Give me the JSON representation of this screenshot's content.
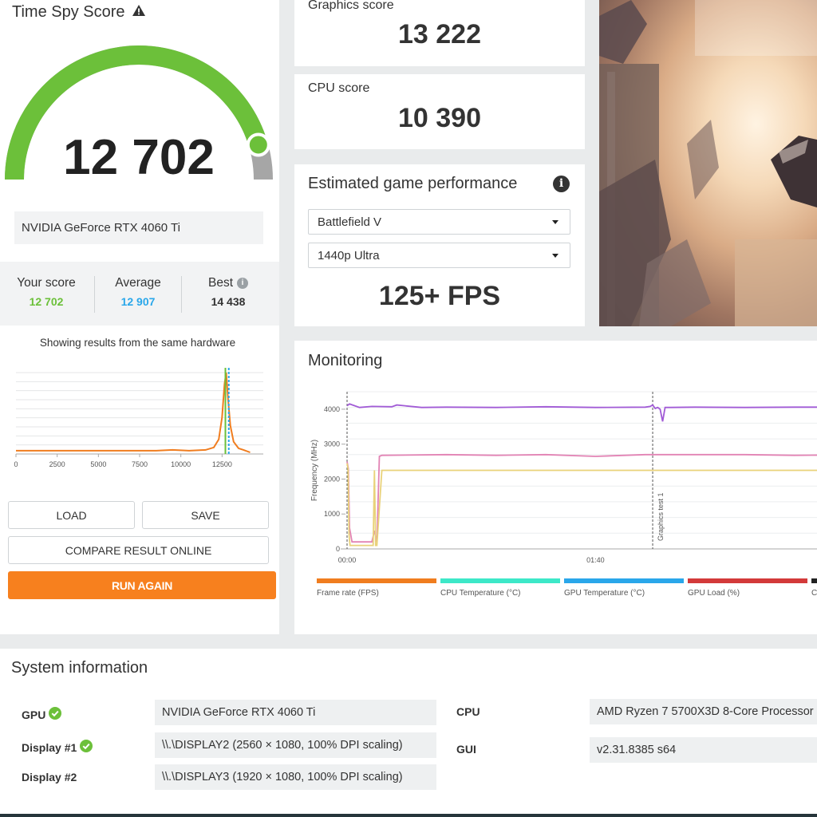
{
  "score_panel": {
    "title": "Time Spy Score",
    "score": "12 702",
    "gauge_fraction": 0.91,
    "hardware": "NVIDIA GeForce RTX 4060 Ti",
    "stats": {
      "your_label": "Your score",
      "your_value": "12 702",
      "avg_label": "Average",
      "avg_value": "12 907",
      "best_label": "Best",
      "best_value": "14 438"
    },
    "distribution_caption": "Showing results from the same hardware",
    "buttons": {
      "load": "LOAD",
      "save": "SAVE",
      "compare": "COMPARE RESULT ONLINE",
      "run": "RUN AGAIN"
    }
  },
  "graphics_card": {
    "label": "Graphics score",
    "value": "13 222"
  },
  "cpu_card": {
    "label": "CPU score",
    "value": "10 390"
  },
  "game_perf": {
    "title": "Estimated game performance",
    "game": "Battlefield V",
    "preset": "1440p Ultra",
    "fps": "125+ FPS"
  },
  "monitoring": {
    "title": "Monitoring",
    "legend": [
      {
        "label": "Frame rate (FPS)",
        "color": "#f07d1f"
      },
      {
        "label": "CPU Temperature (°C)",
        "color": "#3de8c8"
      },
      {
        "label": "GPU Temperature (°C)",
        "color": "#2aa7ea"
      },
      {
        "label": "GPU Load (%)",
        "color": "#d33a3a"
      },
      {
        "label": "C",
        "color": "#222222"
      }
    ]
  },
  "system_info": {
    "title": "System information",
    "gpu_label": "GPU",
    "gpu_value": "NVIDIA GeForce RTX 4060 Ti",
    "display1_label": "Display #1",
    "display1_value": "\\\\.\\DISPLAY2 (2560 × 1080, 100% DPI scaling)",
    "display2_label": "Display #2",
    "display2_value": "\\\\.\\DISPLAY3 (1920 × 1080, 100% DPI scaling)",
    "cpu_label": "CPU",
    "cpu_value": "AMD Ryzen 7 5700X3D 8-Core Processor",
    "gui_label": "GUI",
    "gui_value": "v2.31.8385 s64"
  },
  "colors": {
    "accent_green": "#6cc03a",
    "accent_blue": "#2aa7ea",
    "run_orange": "#f7801e"
  },
  "chart_data": [
    {
      "type": "line",
      "name": "score-distribution",
      "x_ticks": [
        "0",
        "2500",
        "5000",
        "7500",
        "10000",
        "12500"
      ],
      "xlim": [
        0,
        15000
      ],
      "series": [
        {
          "values_x": [
            0,
            2000,
            5000,
            8500,
            9500,
            10500,
            11500,
            12000,
            12300,
            12500,
            12650,
            12750,
            12850,
            13000,
            13200,
            13500,
            13800,
            14200
          ],
          "values_y": [
            0.04,
            0.04,
            0.04,
            0.04,
            0.05,
            0.04,
            0.05,
            0.08,
            0.18,
            0.45,
            0.86,
            1.0,
            0.7,
            0.35,
            0.15,
            0.07,
            0.05,
            0.02
          ]
        }
      ],
      "markers": {
        "your_score": 12702,
        "average": 12907
      }
    },
    {
      "type": "line",
      "name": "monitoring",
      "ylabel": "Frequency (MHz)",
      "y_ticks": [
        "0",
        "1000",
        "2000",
        "3000",
        "4000"
      ],
      "ylim": [
        0,
        4500
      ],
      "x_ticks": [
        "00:00",
        "01:40"
      ],
      "xlim": [
        0,
        210
      ],
      "annotations": [
        {
          "x": 123,
          "label": "Graphics test 1"
        }
      ],
      "series": [
        {
          "color": "#a15bd6",
          "x": [
            0,
            1,
            5,
            10,
            18,
            20,
            30,
            40,
            60,
            80,
            100,
            120,
            122,
            123,
            124,
            125,
            126,
            127,
            128,
            130,
            140,
            160,
            180,
            200,
            210
          ],
          "y": [
            4100,
            4150,
            4050,
            4080,
            4070,
            4120,
            4050,
            4060,
            4050,
            4070,
            4050,
            4060,
            4080,
            4120,
            4020,
            4050,
            4000,
            3650,
            4050,
            4050,
            4060,
            4050,
            4060,
            4060,
            4050
          ]
        },
        {
          "color": "#e283b4",
          "x": [
            0,
            0.5,
            1,
            2,
            8,
            10,
            11,
            12,
            13,
            14,
            40,
            60,
            80,
            100,
            120,
            140,
            160,
            180,
            210
          ],
          "y": [
            2500,
            2300,
            600,
            200,
            200,
            200,
            520,
            200,
            2650,
            2680,
            2700,
            2680,
            2700,
            2650,
            2700,
            2700,
            2700,
            2680,
            2700
          ]
        },
        {
          "color": "#e9d27a",
          "x": [
            0,
            0.4,
            0.8,
            1.2,
            8,
            10.5,
            11,
            11.5,
            12,
            14,
            40,
            100,
            160,
            210
          ],
          "y": [
            2450,
            2300,
            400,
            100,
            100,
            100,
            2250,
            100,
            100,
            2250,
            2250,
            2250,
            2250,
            2250
          ]
        }
      ]
    }
  ]
}
